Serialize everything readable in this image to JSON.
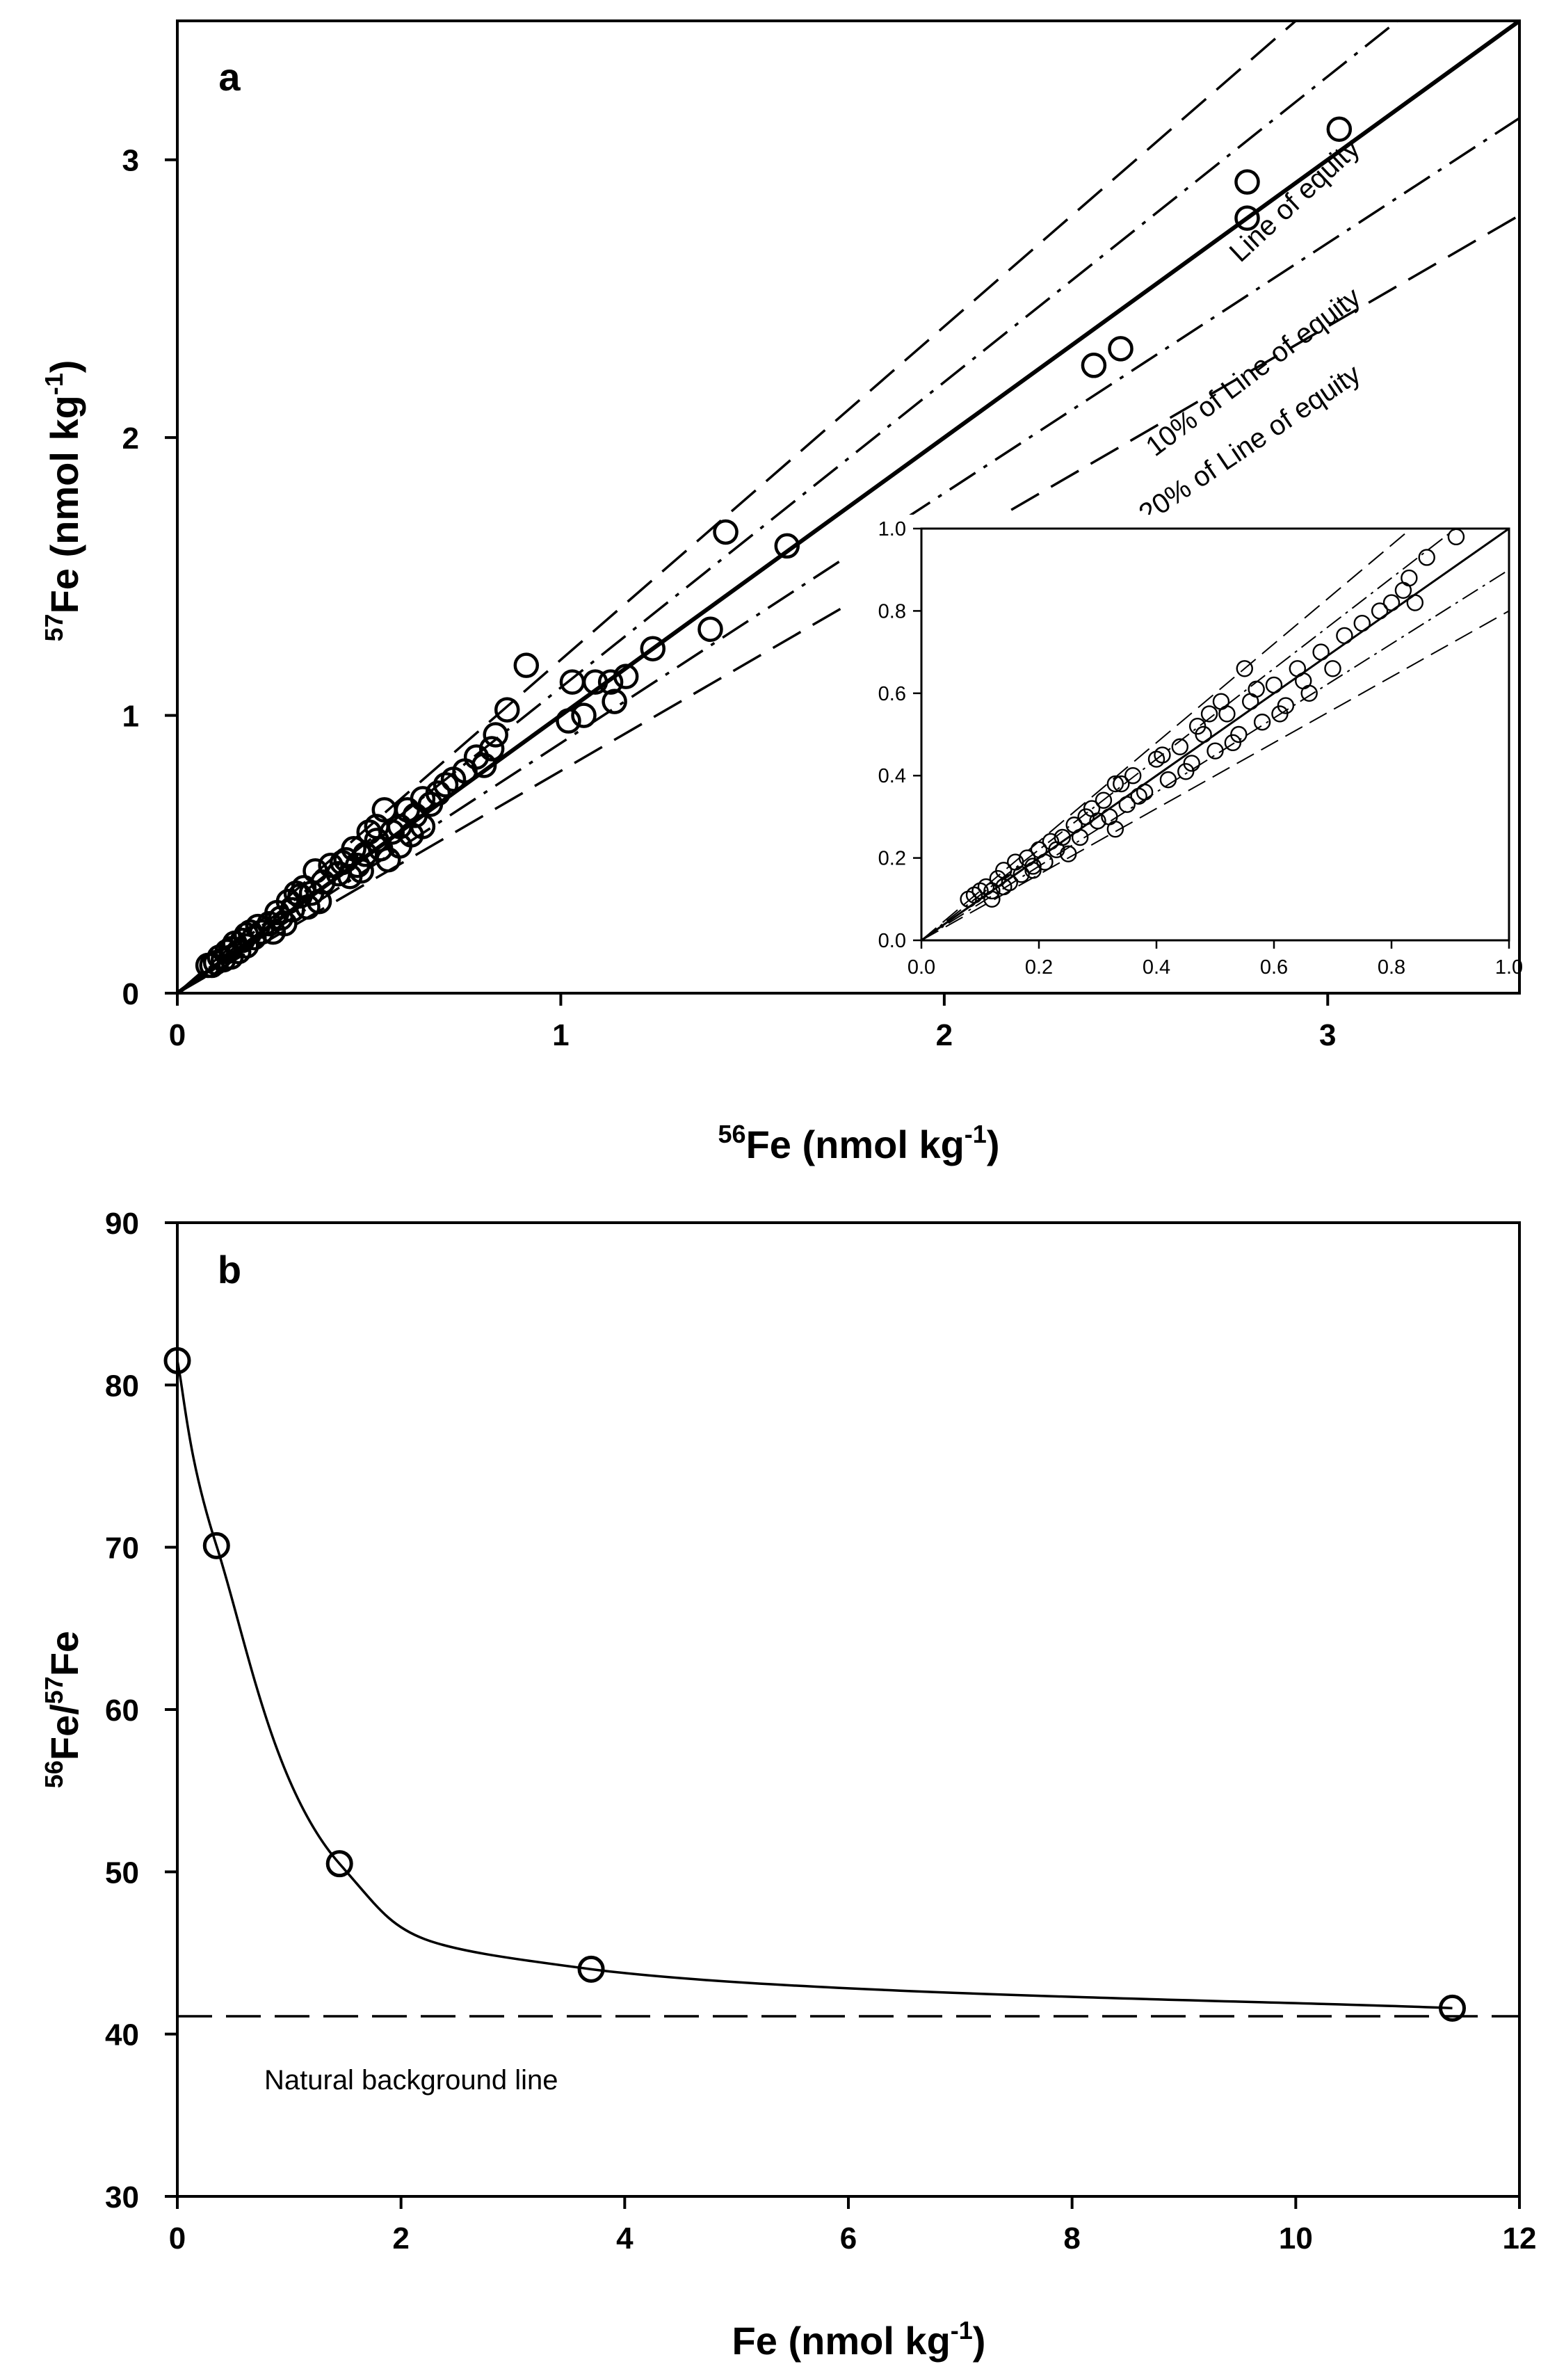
{
  "colors": {
    "ink": "#000000",
    "background": "#ffffff"
  },
  "chart_data": [
    {
      "id": "a",
      "type": "scatter",
      "panel_label": "a",
      "xlabel": {
        "sup": "56",
        "base": "Fe (nmol kg",
        "exp": "-1",
        "close": ")"
      },
      "ylabel": {
        "sup": "57",
        "base": "Fe (nmol kg",
        "exp": "-1",
        "close": ")"
      },
      "xlim": [
        0,
        3.5
      ],
      "ylim": [
        0,
        3.5
      ],
      "xticks": [
        0,
        1,
        2,
        3
      ],
      "yticks": [
        0,
        1,
        2,
        3
      ],
      "reference_lines": [
        {
          "name": "Line of equity",
          "slope": 1.0,
          "style": "solid",
          "label": "Line of equity"
        },
        {
          "name": "+10%",
          "slope": 1.1,
          "style": "dashdot",
          "label": ""
        },
        {
          "name": "-10%",
          "slope": 0.9,
          "style": "dashdot",
          "label": "10% of Line of equity"
        },
        {
          "name": "+20%",
          "slope": 1.2,
          "style": "dashed",
          "label": ""
        },
        {
          "name": "-20%",
          "slope": 0.8,
          "style": "dashed",
          "label": "20% of Line of equity"
        }
      ],
      "points": {
        "x": [
          3.03,
          2.79,
          2.79,
          2.46,
          2.39,
          1.59,
          1.43,
          1.39,
          1.24,
          1.17,
          1.13,
          1.14,
          1.09,
          1.06,
          1.03,
          1.02,
          0.91,
          0.86,
          0.83,
          0.82,
          0.8,
          0.78,
          0.75,
          0.72,
          0.7,
          0.68,
          0.66,
          0.64,
          0.62,
          0.6,
          0.58,
          0.56,
          0.54,
          0.53,
          0.52,
          0.5,
          0.49,
          0.47,
          0.46,
          0.44,
          0.42,
          0.4,
          0.38,
          0.36,
          0.35,
          0.33,
          0.32,
          0.3,
          0.29,
          0.27,
          0.26,
          0.24,
          0.22,
          0.21,
          0.2,
          0.19,
          0.18,
          0.17,
          0.16,
          0.15,
          0.14,
          0.13,
          0.12,
          0.11,
          0.1,
          0.09,
          0.08,
          0.55,
          0.52,
          0.48,
          0.43,
          0.37,
          0.31,
          0.25,
          0.18,
          0.14,
          0.58,
          0.61,
          0.64,
          0.45,
          0.34,
          0.28
        ],
        "y": [
          3.11,
          2.92,
          2.79,
          2.32,
          2.26,
          1.61,
          1.66,
          1.31,
          1.24,
          1.14,
          1.12,
          1.05,
          1.12,
          1.0,
          1.12,
          0.98,
          1.18,
          1.02,
          0.93,
          0.88,
          0.82,
          0.85,
          0.8,
          0.77,
          0.75,
          0.72,
          0.68,
          0.7,
          0.64,
          0.66,
          0.6,
          0.58,
          0.66,
          0.52,
          0.55,
          0.58,
          0.5,
          0.46,
          0.52,
          0.48,
          0.43,
          0.46,
          0.4,
          0.44,
          0.36,
          0.38,
          0.35,
          0.3,
          0.33,
          0.27,
          0.29,
          0.25,
          0.22,
          0.24,
          0.2,
          0.22,
          0.17,
          0.19,
          0.15,
          0.18,
          0.13,
          0.15,
          0.12,
          0.13,
          0.11,
          0.1,
          0.1,
          0.48,
          0.6,
          0.44,
          0.47,
          0.33,
          0.36,
          0.22,
          0.21,
          0.16,
          0.53,
          0.57,
          0.6,
          0.42,
          0.31,
          0.25
        ]
      },
      "inset": {
        "type": "scatter",
        "xlim": [
          0,
          1.0
        ],
        "ylim": [
          0,
          1.0
        ],
        "xtick_labels": [
          "0.0",
          "0.2",
          "0.4",
          "0.6",
          "0.8",
          "1.0"
        ],
        "ytick_labels": [
          "0.0",
          "0.2",
          "0.4",
          "0.6",
          "0.8",
          "1.0"
        ],
        "x": [
          0.08,
          0.09,
          0.1,
          0.11,
          0.12,
          0.13,
          0.14,
          0.15,
          0.16,
          0.17,
          0.18,
          0.19,
          0.2,
          0.21,
          0.22,
          0.23,
          0.24,
          0.26,
          0.27,
          0.29,
          0.3,
          0.31,
          0.32,
          0.33,
          0.35,
          0.36,
          0.38,
          0.4,
          0.42,
          0.44,
          0.46,
          0.48,
          0.5,
          0.52,
          0.54,
          0.56,
          0.58,
          0.6,
          0.62,
          0.64,
          0.66,
          0.68,
          0.7,
          0.72,
          0.75,
          0.78,
          0.8,
          0.82,
          0.83,
          0.84,
          0.86,
          0.91,
          0.55,
          0.53,
          0.47,
          0.41,
          0.37,
          0.33,
          0.28,
          0.19,
          0.14,
          0.12,
          0.57,
          0.61,
          0.65,
          0.45,
          0.34,
          0.25,
          0.49,
          0.51
        ],
        "y": [
          0.1,
          0.11,
          0.12,
          0.13,
          0.12,
          0.15,
          0.17,
          0.14,
          0.19,
          0.16,
          0.2,
          0.17,
          0.22,
          0.19,
          0.24,
          0.22,
          0.25,
          0.28,
          0.25,
          0.32,
          0.29,
          0.34,
          0.3,
          0.38,
          0.33,
          0.4,
          0.36,
          0.44,
          0.39,
          0.47,
          0.43,
          0.5,
          0.46,
          0.55,
          0.5,
          0.58,
          0.53,
          0.62,
          0.57,
          0.66,
          0.6,
          0.7,
          0.66,
          0.74,
          0.77,
          0.8,
          0.82,
          0.85,
          0.88,
          0.82,
          0.93,
          0.98,
          0.66,
          0.48,
          0.52,
          0.45,
          0.35,
          0.27,
          0.3,
          0.18,
          0.13,
          0.1,
          0.61,
          0.55,
          0.63,
          0.41,
          0.38,
          0.21,
          0.55,
          0.58
        ]
      }
    },
    {
      "id": "b",
      "type": "line",
      "panel_label": "b",
      "xlabel": {
        "base": "Fe (nmol kg",
        "exp": "-1",
        "close": ")"
      },
      "ylabel": {
        "sup1": "56",
        "mid": "Fe/",
        "sup2": "57",
        "end": "Fe"
      },
      "xlim": [
        0,
        12
      ],
      "ylim": [
        30,
        90
      ],
      "xticks": [
        0,
        2,
        4,
        6,
        8,
        10,
        12
      ],
      "yticks": [
        30,
        40,
        50,
        60,
        70,
        80,
        90
      ],
      "series": [
        {
          "name": "measured",
          "x": [
            0.0,
            0.35,
            1.45,
            3.7,
            11.4
          ],
          "y": [
            81.5,
            70.1,
            50.5,
            44.0,
            41.6
          ]
        }
      ],
      "reference": {
        "name": "Natural background line",
        "y": 41.1,
        "style": "dashed",
        "label": "Natural background line"
      }
    }
  ]
}
